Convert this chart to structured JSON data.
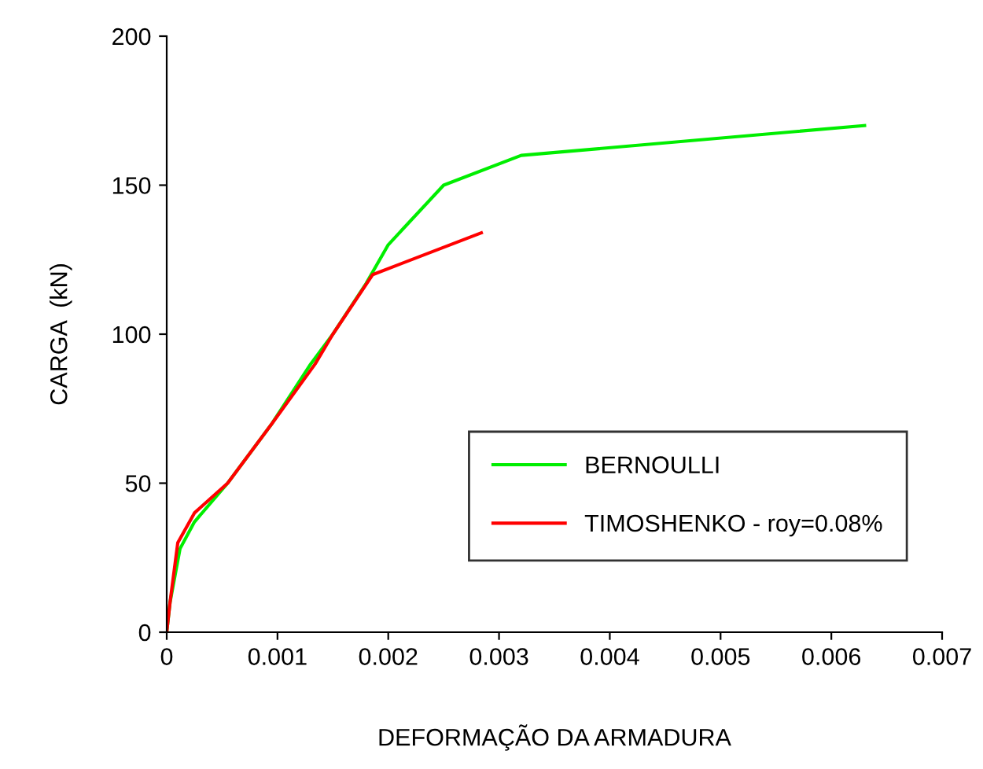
{
  "chart_data": {
    "type": "line",
    "xlabel": "DEFORMAÇÃO DA ARMADURA",
    "ylabel": "CARGA  (kN)",
    "xlim": [
      0,
      0.007
    ],
    "xticks": [
      {
        "value": 0,
        "label": "0"
      },
      0.001,
      0.002,
      0.003,
      0.004,
      0.005,
      0.006,
      0.007
    ],
    "ylim": [
      0,
      200
    ],
    "yticks": [
      0,
      50,
      100,
      150,
      200
    ],
    "grid": false,
    "legend": "bottom right",
    "marker": "none",
    "series": [
      {
        "name": "BERNOULLI",
        "color": "#00ee00",
        "x": [
          0,
          3e-05,
          0.00012,
          0.00025,
          0.00055,
          0.00095,
          0.0013,
          0.0015,
          0.0018,
          0.002,
          0.0025,
          0.0032,
          0.0063
        ],
        "values": [
          0,
          10,
          28,
          37,
          50,
          70,
          90,
          100,
          117,
          130,
          150,
          160,
          170
        ]
      },
      {
        "name": "TIMOSHENKO - roy=0.08%",
        "color": "#ff0000",
        "x": [
          0,
          3e-05,
          0.0001,
          0.00025,
          0.00055,
          0.00095,
          0.00134,
          0.0015,
          0.00186,
          0.00284
        ],
        "values": [
          0,
          10,
          30,
          40,
          50,
          70,
          90,
          100,
          120,
          134
        ]
      }
    ]
  }
}
